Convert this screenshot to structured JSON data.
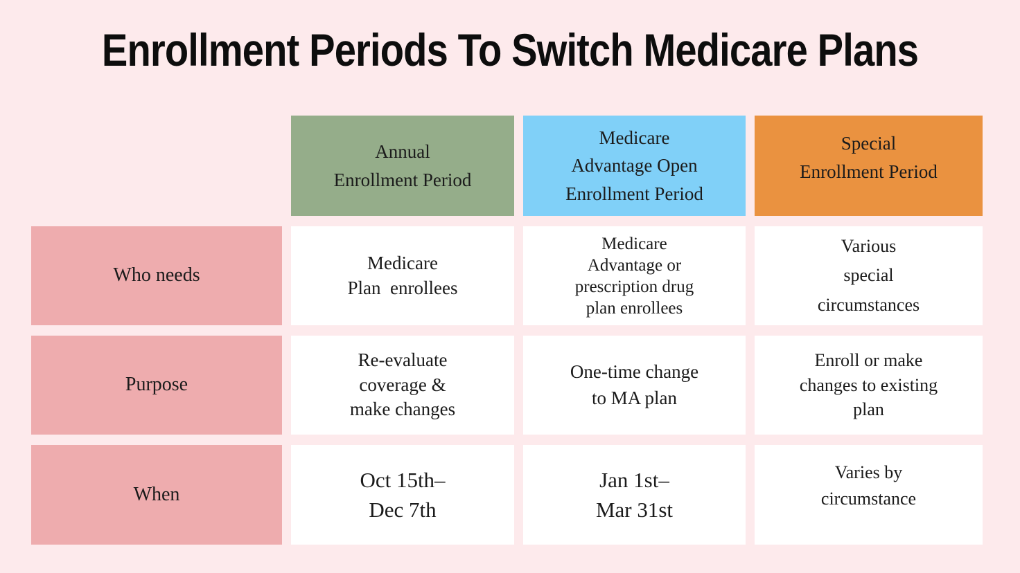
{
  "page": {
    "title": "Enrollment Periods To Switch Medicare Plans",
    "background_color": "#fdeaec",
    "title_color": "#0d0d0d"
  },
  "table": {
    "row_header_color": "#eeacae",
    "cell_color": "#ffffff",
    "columns": [
      {
        "id": "annual-enrollment-period",
        "label": "Annual\nEnrollment Period",
        "color": "#95ad8a"
      },
      {
        "id": "medicare-advantage-open-enrollment-period",
        "label": "Medicare\nAdvantage Open\nEnrollment Period",
        "color": "#80d0f8"
      },
      {
        "id": "special-enrollment-period",
        "label": "Special\nEnrollment Period",
        "color": "#ea9240"
      }
    ],
    "rows": [
      {
        "label": "Who needs",
        "cells": [
          "Medicare\nPlan  enrollees",
          "Medicare\nAdvantage or\nprescription drug\nplan enrollees",
          "Various\nspecial\ncircumstances"
        ]
      },
      {
        "label": "Purpose",
        "cells": [
          "Re-evaluate\ncoverage &\nmake changes",
          "One-time change\nto MA plan",
          "Enroll or make\nchanges to existing\nplan"
        ]
      },
      {
        "label": "When",
        "cells": [
          "Oct 15th–\nDec 7th",
          "Jan 1st–\nMar 31st",
          "Varies by\ncircumstance"
        ]
      }
    ]
  }
}
